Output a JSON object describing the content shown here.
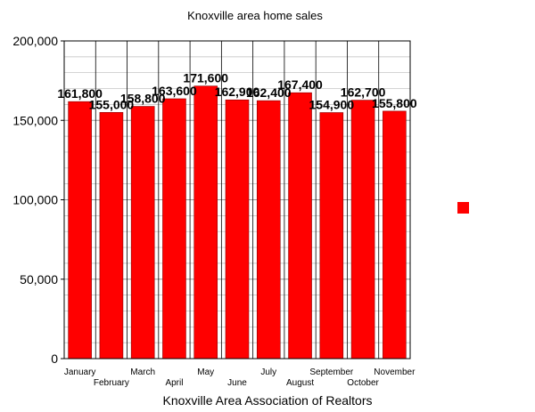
{
  "chart_data": {
    "type": "bar",
    "title": "Knoxville area home sales",
    "xlabel": "Knoxville Area Association of Realtors",
    "ylabel": "",
    "categories": [
      "January",
      "February",
      "March",
      "April",
      "May",
      "June",
      "July",
      "August",
      "September",
      "October",
      "November"
    ],
    "values": [
      161800,
      155000,
      158800,
      163600,
      171600,
      162900,
      162400,
      167400,
      154900,
      162700,
      155800
    ],
    "data_labels": [
      "161,800",
      "155,000",
      "158,800",
      "163,600",
      "171,600",
      "162,900",
      "162,400",
      "167,400",
      "154,900",
      "162,700",
      "155,800"
    ],
    "ylim": [
      0,
      200000
    ],
    "yticks": [
      0,
      50000,
      100000,
      150000,
      200000
    ],
    "ytick_labels": [
      "0",
      "50,000",
      "100,000",
      "150,000",
      "200,000"
    ],
    "grid": true,
    "legend_position": "right",
    "colors": {
      "bar": "#ff0000",
      "bar_edge": "#8b0000",
      "grid": "#bbbbbb"
    }
  }
}
